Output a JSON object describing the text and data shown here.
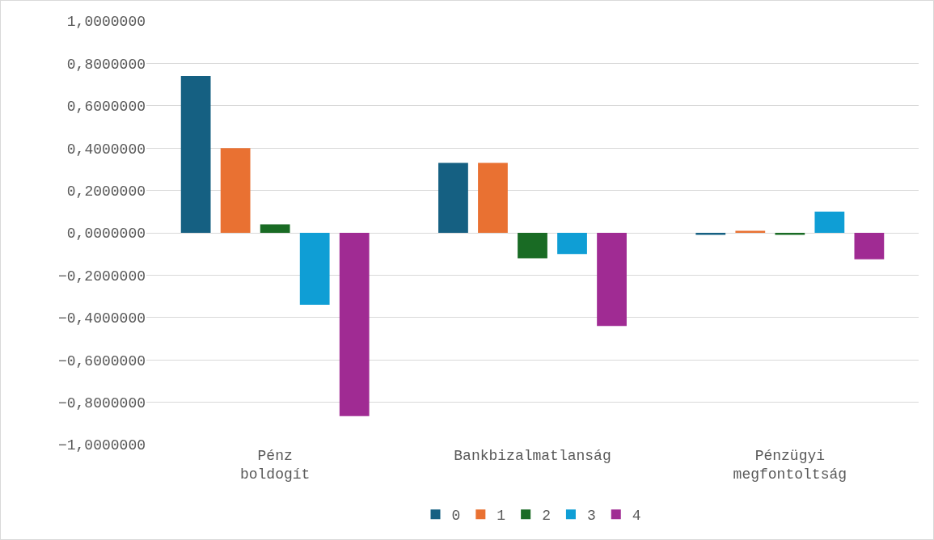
{
  "chart_data": {
    "type": "bar",
    "categories": [
      "Pénz boldogít",
      "Bankbizalmatlanság",
      "Pénzügyi megfontoltság"
    ],
    "series": [
      {
        "name": "0",
        "color": "#156082",
        "values": [
          0.74,
          0.33,
          -0.01
        ]
      },
      {
        "name": "1",
        "color": "#e97132",
        "values": [
          0.4,
          0.33,
          0.01
        ]
      },
      {
        "name": "2",
        "color": "#196b24",
        "values": [
          0.04,
          -0.12,
          -0.01
        ]
      },
      {
        "name": "3",
        "color": "#0f9ed5",
        "values": [
          -0.34,
          -0.1,
          0.1
        ]
      },
      {
        "name": "4",
        "color": "#a02b93",
        "values": [
          -0.865,
          -0.44,
          -0.125
        ]
      }
    ],
    "ylim": [
      -1,
      1
    ],
    "yticks": [
      {
        "value": -1,
        "label": "−1,0000000"
      },
      {
        "value": -0.8,
        "label": "−0,8000000"
      },
      {
        "value": -0.6,
        "label": "−0,6000000"
      },
      {
        "value": -0.4,
        "label": "−0,4000000"
      },
      {
        "value": -0.2,
        "label": "−0,2000000"
      },
      {
        "value": 0,
        "label": "0,0000000"
      },
      {
        "value": 0.2,
        "label": "0,2000000"
      },
      {
        "value": 0.4,
        "label": "0,4000000"
      },
      {
        "value": 0.6,
        "label": "0,6000000"
      },
      {
        "value": 0.8,
        "label": "0,8000000"
      },
      {
        "value": 1,
        "label": "1,0000000"
      }
    ],
    "grid": "y",
    "legend": "bottom"
  }
}
